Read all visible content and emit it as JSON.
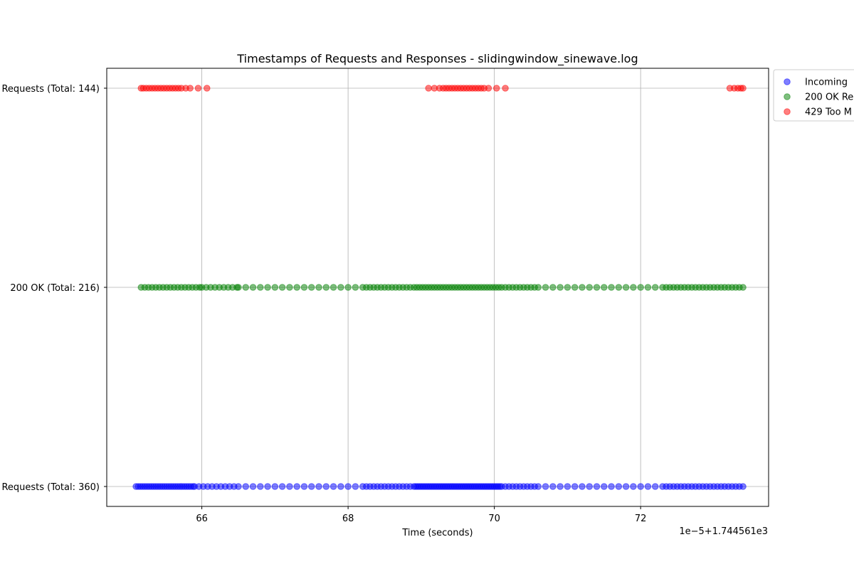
{
  "chart_data": {
    "type": "scatter",
    "title": "Timestamps of Requests and Responses - slidingwindow_sinewave.log",
    "xlabel": "Time (seconds)",
    "ylabel": "",
    "x_offset_label": "1e−5+1.744561e3",
    "xlim": [
      64.7,
      73.75
    ],
    "xticks": [
      66,
      68,
      70,
      72
    ],
    "xtick_labels": [
      "66",
      "68",
      "70",
      "72"
    ],
    "y_categories": [
      "Requests (Total: 360)",
      "200 OK (Total: 216)",
      "Requests (Total: 144)"
    ],
    "grid": true,
    "legend_placement": "outside upper right",
    "series": [
      {
        "name": "Incoming",
        "color": "#0000ff",
        "category": 0,
        "segments": [
          {
            "from": 65.1,
            "to": 65.9,
            "step": 0.03
          },
          {
            "from": 65.9,
            "to": 66.5,
            "step": 0.06
          },
          {
            "from": 66.5,
            "to": 68.2,
            "step": 0.1
          },
          {
            "from": 68.2,
            "to": 68.9,
            "step": 0.05
          },
          {
            "from": 68.9,
            "to": 70.1,
            "step": 0.025
          },
          {
            "from": 70.1,
            "to": 70.6,
            "step": 0.05
          },
          {
            "from": 70.6,
            "to": 72.3,
            "step": 0.1
          },
          {
            "from": 72.3,
            "to": 73.4,
            "step": 0.05
          }
        ]
      },
      {
        "name": "200 OK Re",
        "color": "#008000",
        "category": 1,
        "segments": [
          {
            "from": 65.17,
            "to": 66.0,
            "step": 0.05
          },
          {
            "from": 66.0,
            "to": 66.5,
            "step": 0.06
          },
          {
            "from": 66.5,
            "to": 68.2,
            "step": 0.1
          },
          {
            "from": 68.2,
            "to": 68.9,
            "step": 0.05
          },
          {
            "from": 68.9,
            "to": 70.1,
            "step": 0.04
          },
          {
            "from": 70.1,
            "to": 70.6,
            "step": 0.05
          },
          {
            "from": 70.6,
            "to": 72.3,
            "step": 0.1
          },
          {
            "from": 72.3,
            "to": 73.4,
            "step": 0.05
          }
        ]
      },
      {
        "name": "429 Too M",
        "color": "#ff0000",
        "category": 2,
        "points": [
          65.17,
          65.2,
          65.24,
          65.28,
          65.32,
          65.36,
          65.4,
          65.44,
          65.48,
          65.52,
          65.56,
          65.6,
          65.64,
          65.68,
          65.72,
          65.78,
          65.84,
          65.95,
          66.07,
          69.1,
          69.18,
          69.25,
          69.3,
          69.34,
          69.38,
          69.42,
          69.46,
          69.5,
          69.54,
          69.58,
          69.62,
          69.66,
          69.7,
          69.74,
          69.78,
          69.82,
          69.86,
          69.92,
          70.03,
          70.15,
          73.22,
          73.28,
          73.33,
          73.37,
          73.4
        ]
      }
    ]
  }
}
